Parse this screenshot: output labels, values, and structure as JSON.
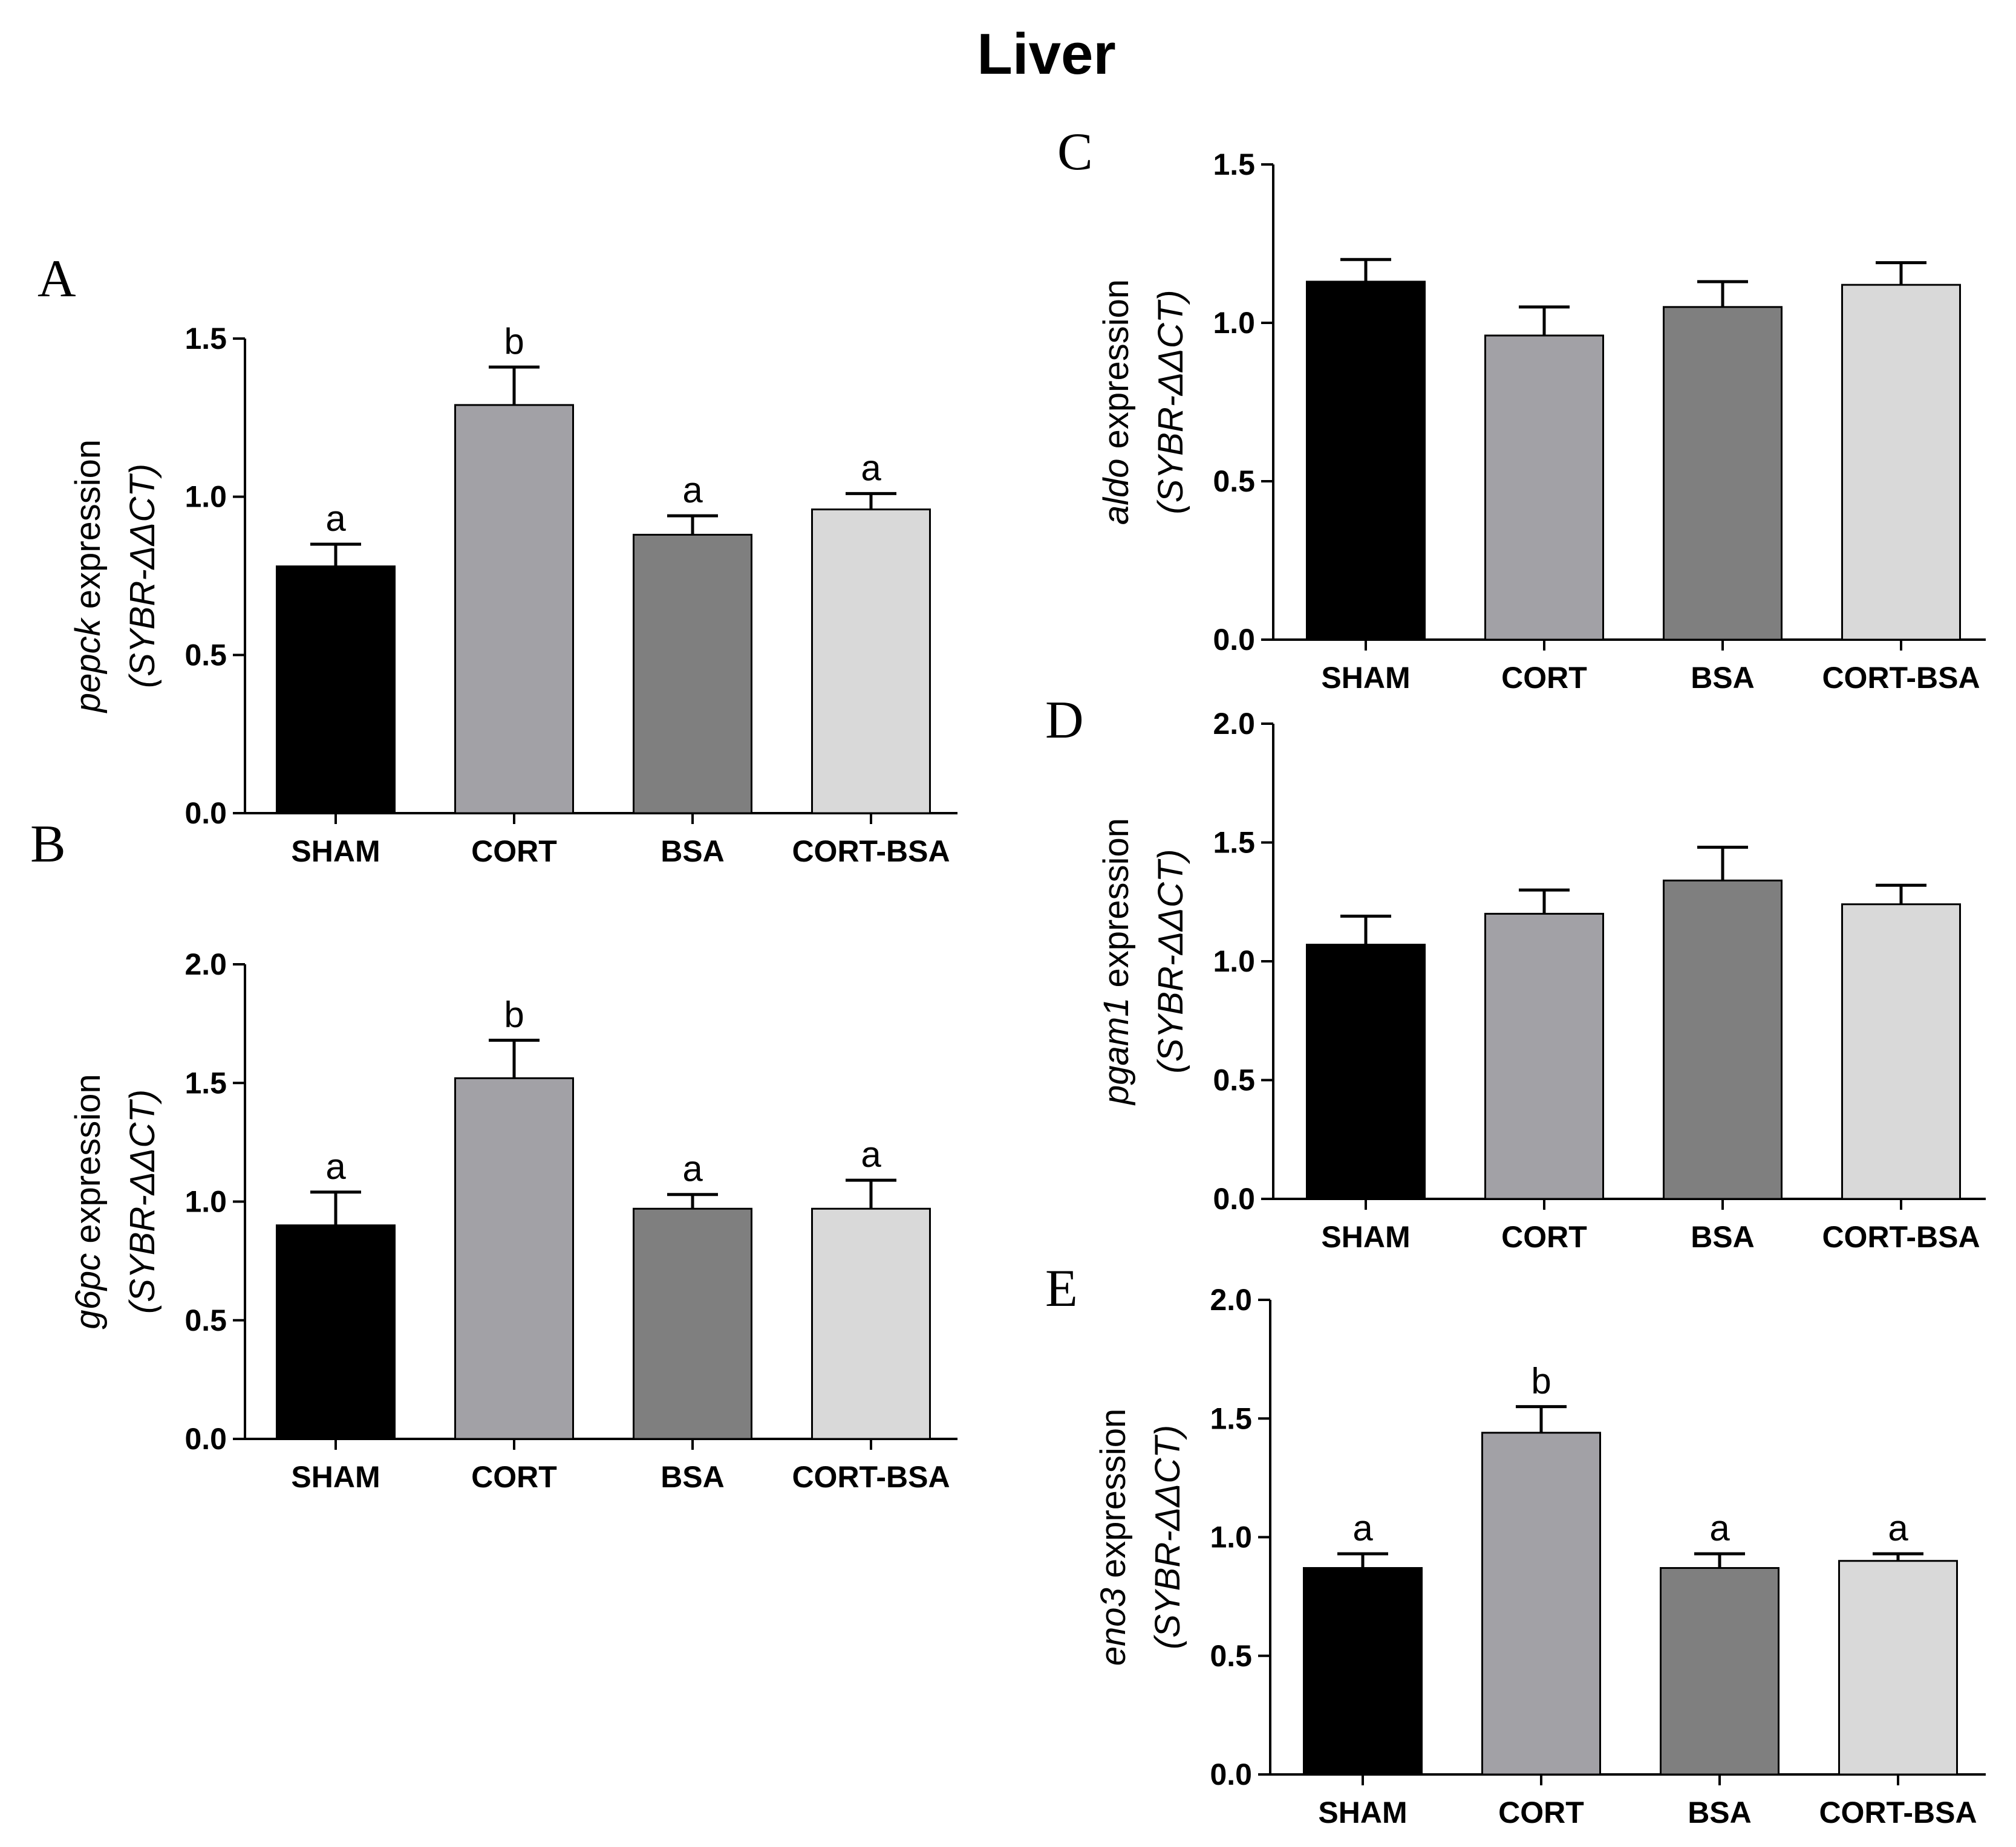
{
  "figure": {
    "title": "Liver"
  },
  "colors": {
    "SHAM": "#000000",
    "CORT": "#a2a1a6",
    "BSA": "#7f7f7f",
    "CORT-BSA": "#d9d9d9",
    "axis": "#000000"
  },
  "chart_data": [
    {
      "panel": "A",
      "type": "bar",
      "gene": "pepck",
      "ylabel_suffix": " expression",
      "ylabel_line2": "(SYBR-ΔΔCT)",
      "categories": [
        "SHAM",
        "CORT",
        "BSA",
        "CORT-BSA"
      ],
      "values": [
        0.78,
        1.29,
        0.88,
        0.96
      ],
      "errors": [
        0.07,
        0.12,
        0.06,
        0.05
      ],
      "significance": [
        "a",
        "b",
        "a",
        "a"
      ],
      "ylim": [
        0,
        1.5
      ],
      "yticks": [
        "0.0",
        "0.5",
        "1.0",
        "1.5"
      ]
    },
    {
      "panel": "B",
      "type": "bar",
      "gene": "g6pc",
      "ylabel_suffix": " expression",
      "ylabel_line2": "(SYBR-ΔΔCT)",
      "categories": [
        "SHAM",
        "CORT",
        "BSA",
        "CORT-BSA"
      ],
      "values": [
        0.9,
        1.52,
        0.97,
        0.97
      ],
      "errors": [
        0.14,
        0.16,
        0.06,
        0.12
      ],
      "significance": [
        "a",
        "b",
        "a",
        "a"
      ],
      "ylim": [
        0,
        2.0
      ],
      "yticks": [
        "0.0",
        "0.5",
        "1.0",
        "1.5",
        "2.0"
      ]
    },
    {
      "panel": "C",
      "type": "bar",
      "gene": "aldo",
      "ylabel_suffix": " expression",
      "ylabel_line2": "(SYBR-ΔΔCT)",
      "categories": [
        "SHAM",
        "CORT",
        "BSA",
        "CORT-BSA"
      ],
      "values": [
        1.13,
        0.96,
        1.05,
        1.12
      ],
      "errors": [
        0.07,
        0.09,
        0.08,
        0.07
      ],
      "significance": [
        "",
        "",
        "",
        ""
      ],
      "ylim": [
        0,
        1.5
      ],
      "yticks": [
        "0.0",
        "0.5",
        "1.0",
        "1.5"
      ]
    },
    {
      "panel": "D",
      "type": "bar",
      "gene": "pgam1",
      "ylabel_suffix": " expression",
      "ylabel_line2": "(SYBR-ΔΔCT)",
      "categories": [
        "SHAM",
        "CORT",
        "BSA",
        "CORT-BSA"
      ],
      "values": [
        1.07,
        1.2,
        1.34,
        1.24
      ],
      "errors": [
        0.12,
        0.1,
        0.14,
        0.08
      ],
      "significance": [
        "",
        "",
        "",
        ""
      ],
      "ylim": [
        0,
        2.0
      ],
      "yticks": [
        "0.0",
        "0.5",
        "1.0",
        "1.5",
        "2.0"
      ]
    },
    {
      "panel": "E",
      "type": "bar",
      "gene": "eno3",
      "ylabel_suffix": " expression",
      "ylabel_line2": "(SYBR-ΔΔCT)",
      "categories": [
        "SHAM",
        "CORT",
        "BSA",
        "CORT-BSA"
      ],
      "values": [
        0.87,
        1.44,
        0.87,
        0.9
      ],
      "errors": [
        0.06,
        0.11,
        0.06,
        0.03
      ],
      "significance": [
        "a",
        "b",
        "a",
        "a"
      ],
      "ylim": [
        0,
        2.0
      ],
      "yticks": [
        "0.0",
        "0.5",
        "1.0",
        "1.5",
        "2.0"
      ]
    }
  ]
}
